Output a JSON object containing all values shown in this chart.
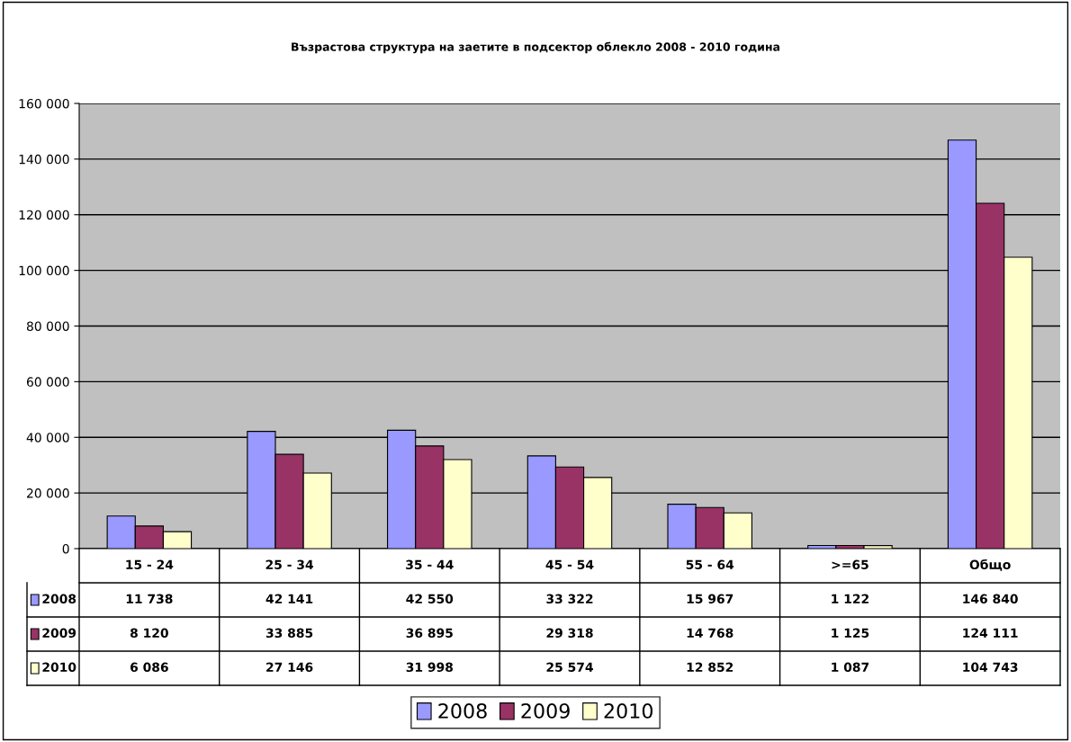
{
  "chart_data": {
    "type": "bar",
    "title": "Възрастова структура на заетите в подсектор облекло 2008 - 2010 година",
    "categories": [
      "15 - 24",
      "25 - 34",
      "35 - 44",
      "45 - 54",
      "55 - 64",
      ">=65",
      "Общо"
    ],
    "series": [
      {
        "name": "2008",
        "color": "#9999ff",
        "values": [
          11738,
          42141,
          42550,
          33322,
          15967,
          1122,
          146840
        ]
      },
      {
        "name": "2009",
        "color": "#993366",
        "values": [
          8120,
          33885,
          36895,
          29318,
          14768,
          1125,
          124111
        ]
      },
      {
        "name": "2010",
        "color": "#ffffcc",
        "values": [
          6086,
          27146,
          31998,
          25574,
          12852,
          1087,
          104743
        ]
      }
    ],
    "ylim": [
      0,
      160000
    ],
    "yticks": [
      0,
      {
        "value": 20000,
        "label": "20 000"
      },
      {
        "value": 40000,
        "label": "40 000"
      },
      {
        "value": 60000,
        "label": "60 000"
      },
      {
        "value": 80000,
        "label": "80 000"
      },
      {
        "value": 100000,
        "label": "100 000"
      },
      {
        "value": 120000,
        "label": "120 000"
      },
      {
        "value": 140000,
        "label": "140 000"
      },
      {
        "value": 160000,
        "label": "160 000"
      }
    ],
    "grid": "y",
    "legend": "bottom",
    "data_labels": true
  }
}
